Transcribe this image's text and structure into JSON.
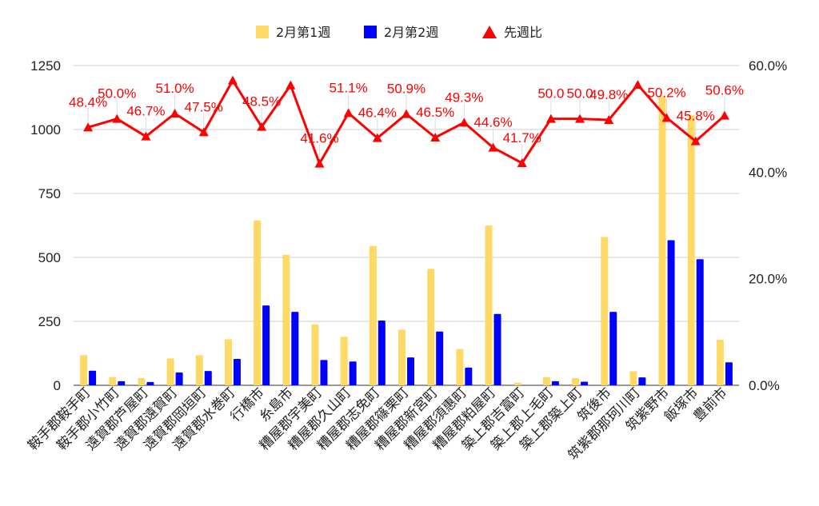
{
  "chart_data": {
    "type": "bar",
    "legend_position": "top",
    "grid": true,
    "categories": [
      "鞍手郡鞍手町",
      "鞍手郡小竹町",
      "遠賀郡芦屋町",
      "遠賀郡遠賀町",
      "遠賀郡岡垣町",
      "遠賀郡水巻町",
      "行橋市",
      "糸島市",
      "糟屋郡宇美町",
      "糟屋郡久山町",
      "糟屋郡志免町",
      "糟屋郡篠栗町",
      "糟屋郡新宮町",
      "糟屋郡須惠町",
      "糟屋郡粕屋町",
      "築上郡吉富町",
      "築上郡上毛町",
      "築上郡築上町",
      "筑後市",
      "筑紫郡那珂川町",
      "筑紫野市",
      "飯塚市",
      "豊前市"
    ],
    "y_left": {
      "min": 0,
      "max": 1250,
      "ticks": [
        "0",
        "250",
        "500",
        "750",
        "1000",
        "1250"
      ]
    },
    "y_right": {
      "min": 0,
      "max": 0.6,
      "ticks": [
        "0.0%",
        "20.0%",
        "40.0%",
        "60.0%"
      ]
    },
    "series": [
      {
        "name": "2月第1週",
        "type": "bar",
        "axis": "left",
        "color": "#ffd966",
        "values": [
          118,
          32,
          28,
          105,
          118,
          180,
          645,
          510,
          238,
          190,
          545,
          218,
          455,
          142,
          625,
          10,
          32,
          28,
          580,
          55,
          1130,
          1055,
          178
        ]
      },
      {
        "name": "2月第2週",
        "type": "bar",
        "axis": "left",
        "color": "#0000ff",
        "values": [
          57,
          16,
          13,
          50,
          56,
          103,
          312,
          287,
          99,
          93,
          253,
          109,
          210,
          69,
          279,
          0,
          16,
          14,
          287,
          31,
          567,
          493,
          90
        ]
      },
      {
        "name": "先週比",
        "type": "line",
        "axis": "right",
        "color": "#ff0000",
        "marker": "triangle",
        "values": [
          0.484,
          0.5,
          0.467,
          0.51,
          0.475,
          0.572,
          0.485,
          0.563,
          0.416,
          0.511,
          0.464,
          0.509,
          0.465,
          0.493,
          0.446,
          0.417,
          0.5,
          0.5,
          0.498,
          0.564,
          0.502,
          0.458,
          0.506
        ],
        "labels": [
          "48.4%",
          "50.0%",
          "46.7%",
          "51.0%",
          "47.5%",
          "",
          "48.5%",
          "",
          "41.6%",
          "51.1%",
          "46.4%",
          "50.9%",
          "46.5%",
          "49.3%",
          "44.6%",
          "41.7%",
          "50.0",
          "50.0",
          "49.8%",
          "",
          "50.2%",
          "45.8%",
          "50.6%"
        ]
      }
    ]
  }
}
